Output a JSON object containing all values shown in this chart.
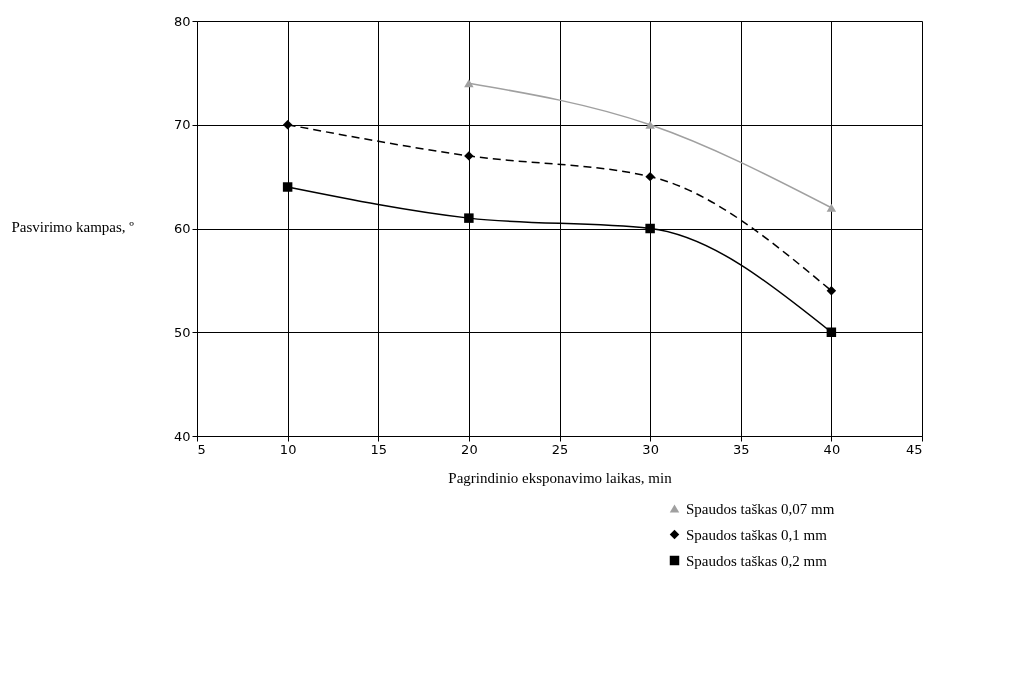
{
  "chart_data": {
    "type": "line",
    "xlabel": "Pagrindinio eksponavimo laikas, min",
    "ylabel": "Pasvirimo kampas, º",
    "xlim": [
      5,
      45
    ],
    "xticks": [
      5,
      10,
      15,
      20,
      25,
      30,
      35,
      40,
      45
    ],
    "ylim": [
      40,
      80
    ],
    "yticks": [
      40,
      50,
      60,
      70,
      80
    ],
    "grid": true,
    "legend": "bottom",
    "series": [
      {
        "name": "Spaudos taškas 0,07 mm",
        "color": "#a0a0a0",
        "marker": "triangle",
        "line_style": "solid",
        "x": [
          20,
          30,
          40
        ],
        "values": [
          74,
          70,
          62
        ]
      },
      {
        "name": "Spaudos taškas 0,1 mm",
        "color": "#000000",
        "marker": "diamond",
        "line_style": "dashed",
        "x": [
          10,
          20,
          30,
          40
        ],
        "values": [
          70,
          67,
          65,
          54
        ]
      },
      {
        "name": "Spaudos taškas 0,2 mm",
        "color": "#000000",
        "marker": "square",
        "line_style": "solid",
        "x": [
          10,
          20,
          30,
          40
        ],
        "values": [
          64,
          61,
          60,
          50
        ]
      }
    ]
  }
}
